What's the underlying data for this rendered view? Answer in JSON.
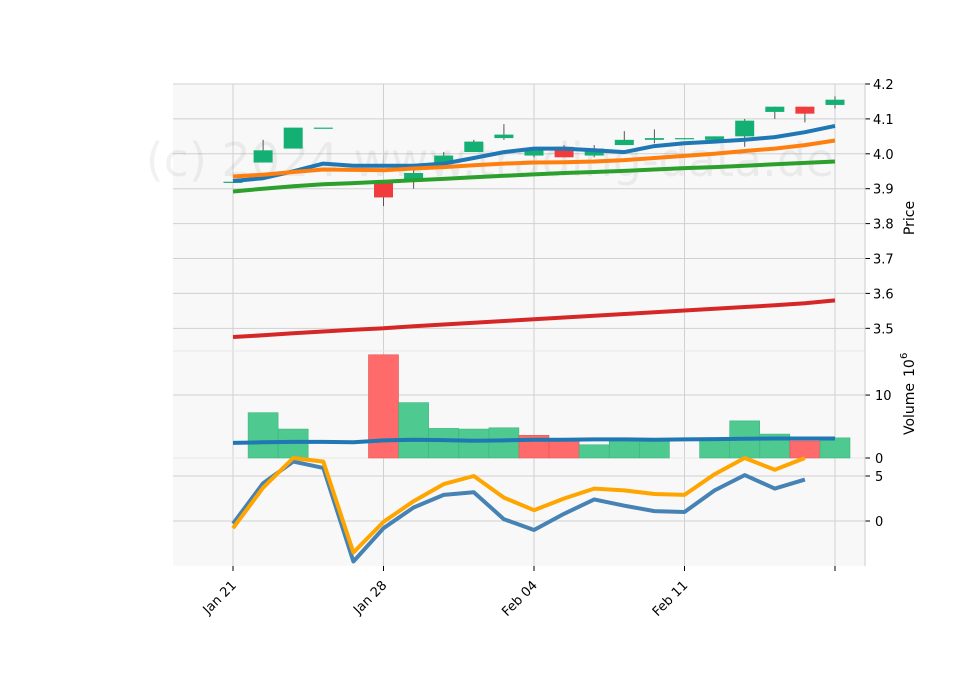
{
  "chart_data": {
    "type": "candlestick",
    "watermark": "(c) 2024 www.trading-data.de",
    "colors": {
      "up": "#14b073",
      "down": "#f03c3c",
      "ma_short": "#1f77b4",
      "ma_mid": "#ff7f0e",
      "ma_long": "#2ca02c",
      "ma_longest": "#d62728",
      "vol_up": "#4ec98f",
      "vol_down": "#ff6b6b",
      "vol_ma": "#1f77b4",
      "osc_a": "#4682b4",
      "osc_b": "#ffa500",
      "panel_bg": "#f8f8f8",
      "grid": "#d0d0d0"
    },
    "x_ticks": [
      {
        "label": "Jan 21",
        "index": 0
      },
      {
        "label": "Jan 28",
        "index": 5
      },
      {
        "label": "Feb 04",
        "index": 10
      },
      {
        "label": "Feb 11",
        "index": 15
      },
      {
        "label": "",
        "index": 20
      }
    ],
    "price_panel": {
      "ylabel": "Price",
      "ylim": [
        3.435,
        4.2
      ],
      "ticks": [
        "3.5",
        "3.6",
        "3.7",
        "3.8",
        "3.9",
        "4.0",
        "4.1",
        "4.2"
      ],
      "candles": [
        {
          "o": 3.92,
          "h": 3.92,
          "l": 3.92,
          "c": 3.92
        },
        {
          "o": 3.975,
          "h": 4.04,
          "l": 3.975,
          "c": 4.01
        },
        {
          "o": 4.015,
          "h": 4.075,
          "l": 4.015,
          "c": 4.075
        },
        {
          "o": 4.075,
          "h": 4.075,
          "l": 4.075,
          "c": 4.075
        },
        null,
        {
          "o": 3.92,
          "h": 3.92,
          "l": 3.85,
          "c": 3.875
        },
        {
          "o": 3.92,
          "h": 3.96,
          "l": 3.9,
          "c": 3.945
        },
        {
          "o": 3.975,
          "h": 4.005,
          "l": 3.965,
          "c": 3.995
        },
        {
          "o": 4.005,
          "h": 4.04,
          "l": 4.005,
          "c": 4.035
        },
        {
          "o": 4.045,
          "h": 4.085,
          "l": 4.04,
          "c": 4.055
        },
        {
          "o": 3.995,
          "h": 4.02,
          "l": 3.99,
          "c": 4.015
        },
        {
          "o": 4.02,
          "h": 4.025,
          "l": 3.99,
          "c": 3.99
        },
        {
          "o": 3.995,
          "h": 4.025,
          "l": 3.99,
          "c": 4.015
        },
        {
          "o": 4.025,
          "h": 4.065,
          "l": 4.025,
          "c": 4.04
        },
        {
          "o": 4.04,
          "h": 4.07,
          "l": 4.03,
          "c": 4.045
        },
        {
          "o": 4.045,
          "h": 4.045,
          "l": 4.045,
          "c": 4.045
        },
        {
          "o": 4.04,
          "h": 4.05,
          "l": 4.035,
          "c": 4.05
        },
        {
          "o": 4.05,
          "h": 4.1,
          "l": 4.02,
          "c": 4.095
        },
        {
          "o": 4.12,
          "h": 4.135,
          "l": 4.1,
          "c": 4.135
        },
        {
          "o": 4.135,
          "h": 4.135,
          "l": 4.09,
          "c": 4.115
        },
        {
          "o": 4.14,
          "h": 4.165,
          "l": 4.13,
          "c": 4.155
        }
      ],
      "moving_averages": [
        {
          "name": "MA short",
          "color_key": "ma_short",
          "values": [
            3.922,
            3.93,
            3.95,
            3.972,
            3.966,
            3.966,
            3.966,
            3.972,
            3.988,
            4.005,
            4.015,
            4.015,
            4.01,
            4.005,
            4.022,
            4.03,
            4.035,
            4.04,
            4.048,
            4.062,
            4.08
          ]
        },
        {
          "name": "MA mid",
          "color_key": "ma_mid",
          "values": [
            3.935,
            3.94,
            3.948,
            3.955,
            3.954,
            3.953,
            3.958,
            3.962,
            3.967,
            3.972,
            3.975,
            3.976,
            3.978,
            3.982,
            3.988,
            3.994,
            4.0,
            4.008,
            4.015,
            4.025,
            4.038
          ]
        },
        {
          "name": "MA long",
          "color_key": "ma_long",
          "values": [
            3.892,
            3.9,
            3.907,
            3.913,
            3.916,
            3.92,
            3.924,
            3.928,
            3.933,
            3.937,
            3.941,
            3.945,
            3.948,
            3.951,
            3.955,
            3.959,
            3.962,
            3.966,
            3.97,
            3.974,
            3.978
          ]
        },
        {
          "name": "MA longest",
          "color_key": "ma_longest",
          "values": [
            3.475,
            3.48,
            3.486,
            3.491,
            3.496,
            3.5,
            3.506,
            3.511,
            3.516,
            3.521,
            3.526,
            3.531,
            3.536,
            3.541,
            3.546,
            3.551,
            3.556,
            3.561,
            3.566,
            3.572,
            3.58
          ]
        }
      ]
    },
    "volume_panel": {
      "ylabel": "Volume",
      "ylabel_exponent": "6",
      "ylim": [
        0,
        17
      ],
      "ticks": [
        "0",
        "10"
      ],
      "bars": [
        null,
        {
          "v": 7.2,
          "dir": "up"
        },
        {
          "v": 4.6,
          "dir": "up"
        },
        null,
        null,
        {
          "v": 16.4,
          "dir": "down"
        },
        {
          "v": 8.8,
          "dir": "up"
        },
        {
          "v": 4.7,
          "dir": "up"
        },
        {
          "v": 4.6,
          "dir": "up"
        },
        {
          "v": 4.8,
          "dir": "up"
        },
        {
          "v": 3.6,
          "dir": "down"
        },
        {
          "v": 2.9,
          "dir": "down"
        },
        {
          "v": 2.1,
          "dir": "up"
        },
        {
          "v": 2.9,
          "dir": "up"
        },
        {
          "v": 2.8,
          "dir": "up"
        },
        null,
        {
          "v": 2.8,
          "dir": "up"
        },
        {
          "v": 5.9,
          "dir": "up"
        },
        {
          "v": 3.8,
          "dir": "up"
        },
        {
          "v": 2.7,
          "dir": "down"
        },
        {
          "v": 3.2,
          "dir": "up"
        }
      ],
      "ma_values": [
        2.4,
        2.5,
        2.55,
        2.55,
        2.5,
        2.8,
        2.9,
        2.85,
        2.75,
        2.8,
        2.9,
        2.9,
        2.95,
        2.95,
        2.9,
        2.95,
        3.0,
        3.05,
        3.1,
        3.1,
        3.1
      ]
    },
    "oscillator_panel": {
      "ylim": [
        -5,
        7
      ],
      "ticks": [
        "0",
        "5"
      ],
      "series": [
        {
          "name": "osc_a",
          "color_key": "osc_a",
          "values": [
            -0.3,
            4.2,
            6.6,
            5.9,
            -4.5,
            -0.8,
            1.5,
            2.9,
            3.2,
            0.2,
            -1.0,
            0.8,
            2.4,
            1.7,
            1.1,
            1.0,
            3.4,
            5.1,
            3.6,
            4.6
          ]
        },
        {
          "name": "osc_b",
          "color_key": "osc_b",
          "values": [
            -0.8,
            3.7,
            7.0,
            6.6,
            -3.5,
            -0.1,
            2.2,
            4.1,
            5.0,
            2.6,
            1.2,
            2.5,
            3.6,
            3.4,
            3.0,
            2.9,
            5.2,
            7.0,
            5.7,
            7.0
          ]
        }
      ]
    }
  }
}
